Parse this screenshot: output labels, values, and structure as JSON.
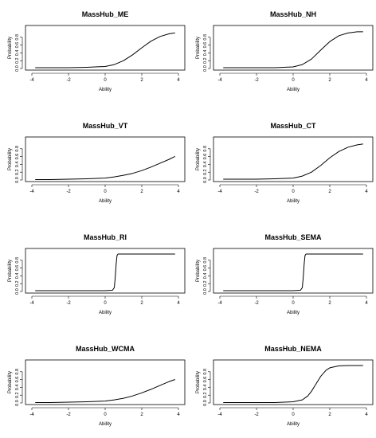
{
  "chart_data": [
    {
      "type": "line",
      "title": "MassHub_ME",
      "xlabel": "Ability",
      "ylabel": "Probability",
      "xlim": [
        -4,
        4
      ],
      "ylim": [
        0,
        1
      ],
      "x_ticks": [
        -4,
        -2,
        0,
        2,
        4
      ],
      "y_ticks": [
        0.0,
        0.2,
        0.4,
        0.6,
        0.8
      ],
      "grid": false,
      "x": [
        -3.8,
        -3,
        -2,
        -1,
        0,
        0.5,
        1,
        1.5,
        2,
        2.5,
        3,
        3.5,
        3.8
      ],
      "y": [
        0.02,
        0.02,
        0.02,
        0.03,
        0.05,
        0.1,
        0.2,
        0.35,
        0.53,
        0.7,
        0.82,
        0.89,
        0.91
      ]
    },
    {
      "type": "line",
      "title": "MassHub_NH",
      "xlabel": "Ability",
      "ylabel": "Probability",
      "xlim": [
        -4,
        4
      ],
      "ylim": [
        0,
        1
      ],
      "x_ticks": [
        -4,
        -2,
        0,
        2,
        4
      ],
      "y_ticks": [
        0.0,
        0.2,
        0.4,
        0.6,
        0.8
      ],
      "grid": false,
      "x": [
        -3.8,
        -2,
        -1,
        0,
        0.5,
        1,
        1.5,
        2,
        2.5,
        3,
        3.5,
        3.8
      ],
      "y": [
        0.02,
        0.02,
        0.02,
        0.04,
        0.1,
        0.24,
        0.47,
        0.69,
        0.84,
        0.91,
        0.94,
        0.94
      ]
    },
    {
      "type": "line",
      "title": "MassHub_VT",
      "xlabel": "Ability",
      "ylabel": "Probability",
      "xlim": [
        -4,
        4
      ],
      "ylim": [
        0,
        1
      ],
      "x_ticks": [
        -4,
        -2,
        0,
        2,
        4
      ],
      "y_ticks": [
        0.0,
        0.2,
        0.4,
        0.6,
        0.8
      ],
      "grid": false,
      "x": [
        -3.8,
        -3,
        -2,
        -1,
        0,
        0.5,
        1,
        1.5,
        2,
        2.5,
        3,
        3.5,
        3.8
      ],
      "y": [
        0.01,
        0.01,
        0.02,
        0.03,
        0.05,
        0.08,
        0.12,
        0.17,
        0.24,
        0.33,
        0.43,
        0.53,
        0.6
      ]
    },
    {
      "type": "line",
      "title": "MassHub_CT",
      "xlabel": "Ability",
      "ylabel": "Probability",
      "xlim": [
        -4,
        4
      ],
      "ylim": [
        0,
        1
      ],
      "x_ticks": [
        -4,
        -2,
        0,
        2,
        4
      ],
      "y_ticks": [
        0.0,
        0.2,
        0.4,
        0.6,
        0.8
      ],
      "grid": false,
      "x": [
        -3.8,
        -2,
        -1,
        0,
        0.5,
        1,
        1.5,
        2,
        2.5,
        3,
        3.5,
        3.8
      ],
      "y": [
        0.02,
        0.02,
        0.03,
        0.05,
        0.1,
        0.2,
        0.37,
        0.57,
        0.73,
        0.84,
        0.9,
        0.92
      ]
    },
    {
      "type": "line",
      "title": "MassHub_RI",
      "xlabel": "Ability",
      "ylabel": "Probability",
      "xlim": [
        -4,
        4
      ],
      "ylim": [
        0,
        1
      ],
      "x_ticks": [
        -4,
        -2,
        0,
        2,
        4
      ],
      "y_ticks": [
        0.0,
        0.2,
        0.4,
        0.6,
        0.8
      ],
      "grid": false,
      "x": [
        -3.8,
        0,
        0.4,
        0.5,
        0.55,
        0.6,
        0.65,
        0.7,
        0.8,
        1,
        2,
        3.8
      ],
      "y": [
        0.02,
        0.02,
        0.03,
        0.1,
        0.35,
        0.7,
        0.92,
        0.96,
        0.96,
        0.96,
        0.96,
        0.96
      ]
    },
    {
      "type": "line",
      "title": "MassHub_SEMA",
      "xlabel": "Ability",
      "ylabel": "Probability",
      "xlim": [
        -4,
        4
      ],
      "ylim": [
        0,
        1
      ],
      "x_ticks": [
        -4,
        -2,
        0,
        2,
        4
      ],
      "y_ticks": [
        0.0,
        0.2,
        0.4,
        0.6,
        0.8
      ],
      "grid": false,
      "x": [
        -3.8,
        0,
        0.4,
        0.5,
        0.55,
        0.6,
        0.65,
        0.7,
        0.8,
        1,
        2,
        3.8
      ],
      "y": [
        0.02,
        0.02,
        0.03,
        0.1,
        0.35,
        0.7,
        0.92,
        0.96,
        0.96,
        0.96,
        0.96,
        0.96
      ]
    },
    {
      "type": "line",
      "title": "MassHub_WCMA",
      "xlabel": "Ability",
      "ylabel": "Probability",
      "xlim": [
        -4,
        4
      ],
      "ylim": [
        0,
        1
      ],
      "x_ticks": [
        -4,
        -2,
        0,
        2,
        4
      ],
      "y_ticks": [
        0.0,
        0.2,
        0.4,
        0.6,
        0.8
      ],
      "grid": false,
      "x": [
        -3.8,
        -3,
        -2,
        -1,
        0,
        0.5,
        1,
        1.5,
        2,
        2.5,
        3,
        3.5,
        3.8
      ],
      "y": [
        0.01,
        0.01,
        0.02,
        0.03,
        0.05,
        0.08,
        0.12,
        0.18,
        0.26,
        0.35,
        0.45,
        0.55,
        0.6
      ]
    },
    {
      "type": "line",
      "title": "MassHub_NEMA",
      "xlabel": "Ability",
      "ylabel": "Probability",
      "xlim": [
        -4,
        4
      ],
      "ylim": [
        0,
        1
      ],
      "x_ticks": [
        -4,
        -2,
        0,
        2,
        4
      ],
      "y_ticks": [
        0.0,
        0.2,
        0.4,
        0.6,
        0.8
      ],
      "grid": false,
      "x": [
        -3.8,
        -1,
        0,
        0.5,
        0.8,
        1,
        1.2,
        1.5,
        1.8,
        2,
        2.5,
        3,
        3.8
      ],
      "y": [
        0.01,
        0.01,
        0.03,
        0.08,
        0.18,
        0.3,
        0.45,
        0.68,
        0.84,
        0.9,
        0.95,
        0.96,
        0.96
      ]
    }
  ]
}
